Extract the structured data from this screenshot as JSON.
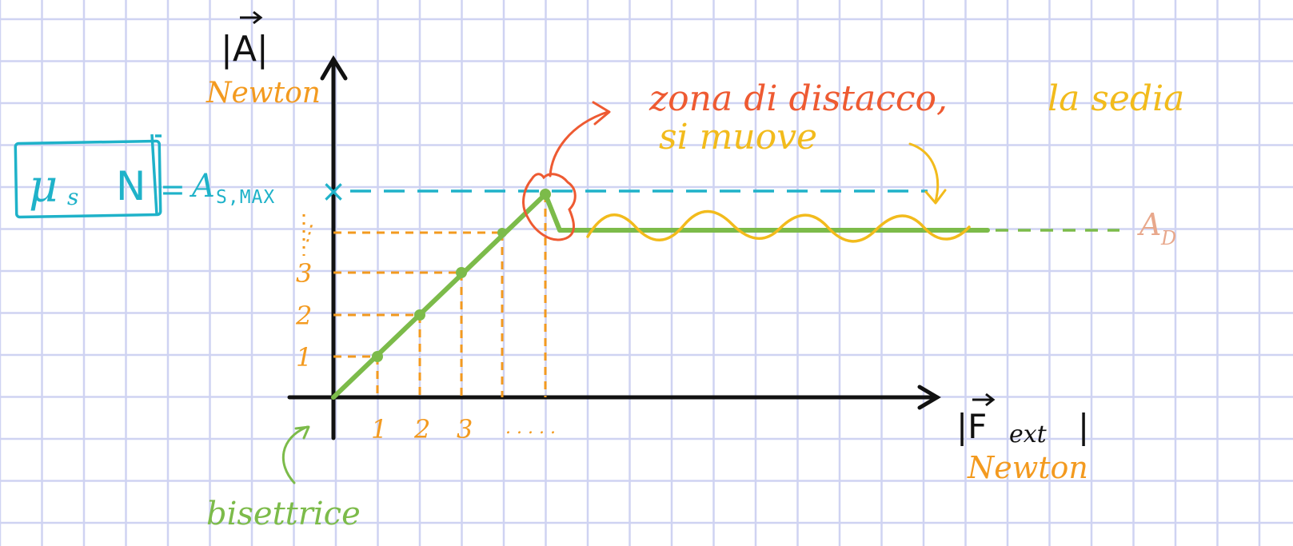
{
  "colors": {
    "grid": "#cfd3f2",
    "axis": "#111111",
    "green": "#7cbb4a",
    "orange": "#f39a1f",
    "cyan": "#1fb2c9",
    "red": "#ee5a32",
    "yellow": "#f2bb1c",
    "salmon": "#e8a88c"
  },
  "labels": {
    "y_axis": "|A|",
    "y_unit": "Newton",
    "x_axis_main": "|F",
    "x_axis_sub": "ext",
    "x_axis_close": "|",
    "x_unit": "Newton",
    "mu": "μ",
    "mu_sub": "s",
    "normal": "N",
    "equals": "=",
    "a_smax": "A",
    "a_smax_sub": "S,MAX",
    "dynamic": "A",
    "dynamic_sub": "D",
    "bisector": "bisettrice",
    "detach_zone": "zona di distacco,",
    "chair_moves_1": "la sedia",
    "chair_moves_2": "si muove",
    "max_marker": "×"
  },
  "ticks": {
    "x": [
      "1",
      "2",
      "3",
      ". . . . ."
    ],
    "y": [
      "1",
      "2",
      "3",
      "⋮"
    ]
  }
}
